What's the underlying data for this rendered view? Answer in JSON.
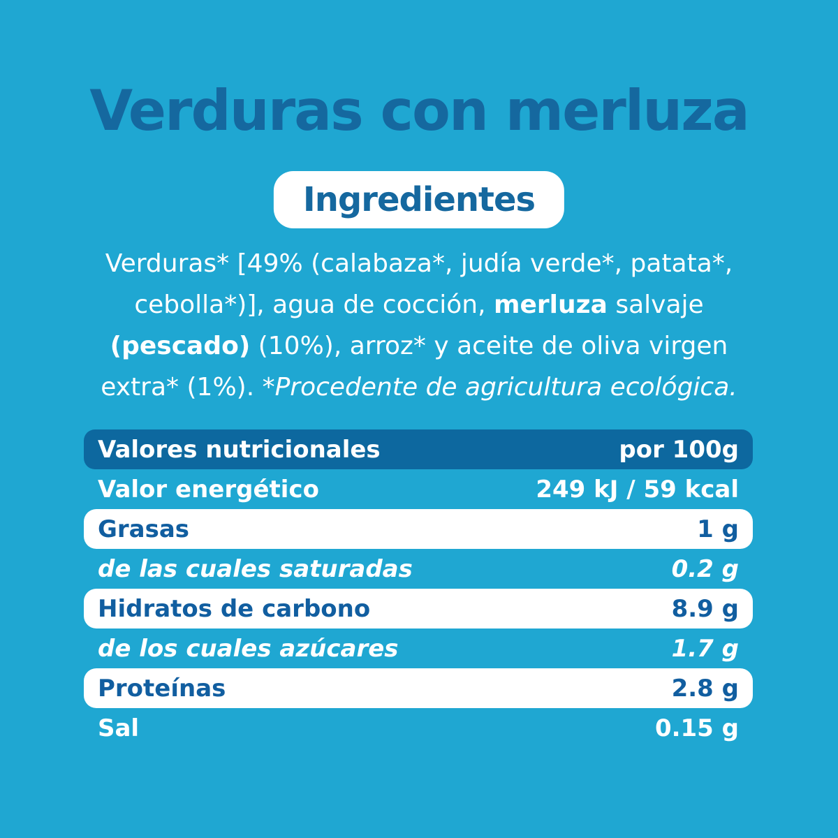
{
  "title": "Verduras con merluza",
  "ingredients": {
    "heading": "Ingredientes",
    "segments": [
      {
        "text": "Verduras* [49% (calabaza*, judía verde*, patata*,"
      },
      {
        "br": true
      },
      {
        "text": "cebolla*)], agua de cocción, "
      },
      {
        "text": "merluza",
        "bold": true
      },
      {
        "text": " salvaje"
      },
      {
        "br": true
      },
      {
        "text": "(pescado)",
        "bold": true
      },
      {
        "text": " (10%), arroz* y aceite de oliva virgen"
      },
      {
        "br": true
      },
      {
        "text": "extra* (1%). "
      },
      {
        "text": "*Procedente de agricultura ecológica.",
        "italic": true
      }
    ]
  },
  "nutrition": {
    "header": {
      "label": "Valores nutricionales",
      "value": "por 100g"
    },
    "rows": [
      {
        "label": "Valor energético",
        "value": "249 kJ / 59 kcal",
        "style": "plain"
      },
      {
        "label": "Grasas",
        "value": "1 g",
        "style": "card"
      },
      {
        "label": "de las cuales saturadas",
        "value": "0.2 g",
        "style": "sub"
      },
      {
        "label": "Hidratos de carbono",
        "value": "8.9 g",
        "style": "card"
      },
      {
        "label": "de los cuales azúcares",
        "value": "1.7 g",
        "style": "sub"
      },
      {
        "label": "Proteínas",
        "value": "2.8 g",
        "style": "card"
      },
      {
        "label": "Sal",
        "value": "0.15 g",
        "style": "plain"
      }
    ]
  },
  "colors": {
    "background": "#1FA7D2",
    "title_blue": "#15689F",
    "header_bg": "#0D689F",
    "card_text": "#115EA0",
    "white": "#FFFFFF"
  }
}
